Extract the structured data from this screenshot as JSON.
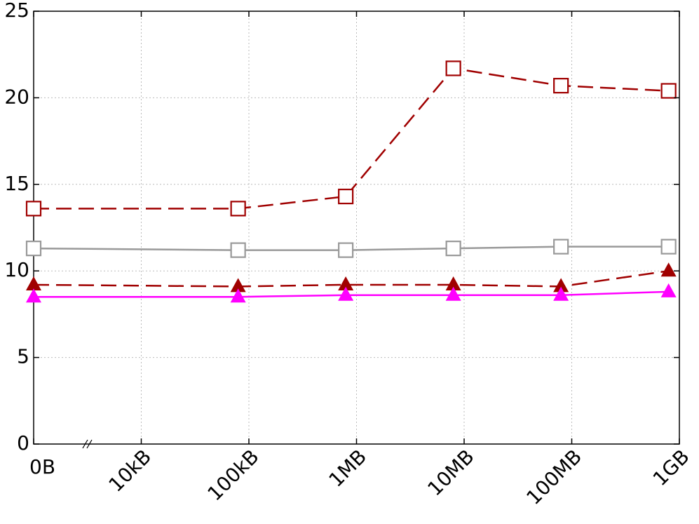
{
  "chart_data": {
    "type": "line",
    "x": [
      0,
      1.9,
      2.9,
      3.9,
      4.9,
      5.9
    ],
    "series": [
      {
        "color": "#a00000",
        "dash": true,
        "marker": "square",
        "values": [
          13.6,
          13.6,
          14.3,
          21.7,
          20.7,
          20.4
        ]
      },
      {
        "color": "#999999",
        "dash": false,
        "marker": "square",
        "values": [
          11.3,
          11.2,
          11.2,
          11.3,
          11.4,
          11.4
        ]
      },
      {
        "color": "#a00000",
        "dash": true,
        "marker": "triangle",
        "values": [
          9.2,
          9.1,
          9.2,
          9.2,
          9.1,
          10.0
        ]
      },
      {
        "color": "#ff00ff",
        "dash": false,
        "marker": "triangle",
        "values": [
          8.5,
          8.5,
          8.6,
          8.6,
          8.6,
          8.8
        ]
      }
    ],
    "xlim": [
      0,
      6
    ],
    "xticks": [
      {
        "value": 0,
        "label": "0B"
      },
      {
        "value": 1,
        "label": "10kB"
      },
      {
        "value": 2,
        "label": "100kB"
      },
      {
        "value": 3,
        "label": "1MB"
      },
      {
        "value": 4,
        "label": "10MB"
      },
      {
        "value": 5,
        "label": "100MB"
      },
      {
        "value": 6,
        "label": "1GB"
      }
    ],
    "ylim": [
      0,
      25
    ],
    "yticks": [
      0,
      5,
      10,
      15,
      20,
      25
    ],
    "grid": true
  }
}
